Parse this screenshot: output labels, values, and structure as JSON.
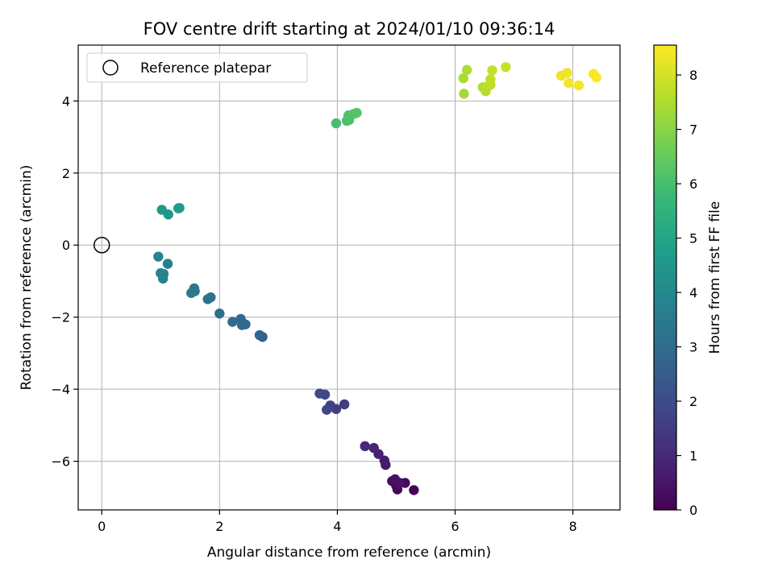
{
  "chart_data": {
    "type": "scatter",
    "title": "FOV centre drift starting at 2024/01/10 09:36:14",
    "xlabel": "Angular distance from reference (arcmin)",
    "ylabel": "Rotation from reference (arcmin)",
    "xlim": [
      -0.4,
      8.8
    ],
    "ylim": [
      -7.35,
      5.55
    ],
    "xticks": [
      0,
      2,
      4,
      6,
      8
    ],
    "xtick_labels": [
      "0",
      "2",
      "4",
      "6",
      "8"
    ],
    "yticks": [
      -6,
      -4,
      -2,
      0,
      2,
      4
    ],
    "ytick_labels": [
      "−6",
      "−4",
      "−2",
      "0",
      "2",
      "4"
    ],
    "grid": true,
    "legend": {
      "placement": "top-left",
      "entries": [
        {
          "label": "Reference platepar",
          "marker": "hollow-circle",
          "color": "#000000"
        }
      ]
    },
    "reference_point": {
      "x": 0,
      "y": 0,
      "label": "Reference platepar"
    },
    "colorbar": {
      "label": "Hours from first FF file",
      "colormap": "viridis",
      "range": [
        0,
        8.55
      ],
      "ticks": [
        0,
        1,
        2,
        3,
        4,
        5,
        6,
        7,
        8
      ],
      "tick_labels": [
        "0",
        "1",
        "2",
        "3",
        "4",
        "5",
        "6",
        "7",
        "8"
      ]
    },
    "points": [
      {
        "x": 5.3,
        "y": -6.8,
        "hours": 0.02
      },
      {
        "x": 5.02,
        "y": -6.78,
        "hours": 0.08
      },
      {
        "x": 5.15,
        "y": -6.6,
        "hours": 0.15
      },
      {
        "x": 5.0,
        "y": -6.68,
        "hours": 0.22
      },
      {
        "x": 4.93,
        "y": -6.55,
        "hours": 0.3
      },
      {
        "x": 4.98,
        "y": -6.5,
        "hours": 0.38
      },
      {
        "x": 5.06,
        "y": -6.6,
        "hours": 0.45
      },
      {
        "x": 4.82,
        "y": -6.1,
        "hours": 0.55
      },
      {
        "x": 4.8,
        "y": -5.98,
        "hours": 0.65
      },
      {
        "x": 4.7,
        "y": -5.8,
        "hours": 0.78
      },
      {
        "x": 4.62,
        "y": -5.63,
        "hours": 0.9
      },
      {
        "x": 4.47,
        "y": -5.58,
        "hours": 1.02
      },
      {
        "x": 4.12,
        "y": -4.42,
        "hours": 1.55
      },
      {
        "x": 3.98,
        "y": -4.55,
        "hours": 1.62
      },
      {
        "x": 3.88,
        "y": -4.45,
        "hours": 1.7
      },
      {
        "x": 3.82,
        "y": -4.57,
        "hours": 1.78
      },
      {
        "x": 3.79,
        "y": -4.15,
        "hours": 1.85
      },
      {
        "x": 3.7,
        "y": -4.12,
        "hours": 1.92
      },
      {
        "x": 2.73,
        "y": -2.55,
        "hours": 2.65
      },
      {
        "x": 2.68,
        "y": -2.5,
        "hours": 2.72
      },
      {
        "x": 2.44,
        "y": -2.2,
        "hours": 2.8
      },
      {
        "x": 2.38,
        "y": -2.22,
        "hours": 2.85
      },
      {
        "x": 2.36,
        "y": -2.05,
        "hours": 2.9
      },
      {
        "x": 2.22,
        "y": -2.13,
        "hours": 2.95
      },
      {
        "x": 2.0,
        "y": -1.9,
        "hours": 3.05
      },
      {
        "x": 1.85,
        "y": -1.45,
        "hours": 3.2
      },
      {
        "x": 1.8,
        "y": -1.5,
        "hours": 3.25
      },
      {
        "x": 1.57,
        "y": -1.2,
        "hours": 3.4
      },
      {
        "x": 1.58,
        "y": -1.28,
        "hours": 3.45
      },
      {
        "x": 1.52,
        "y": -1.33,
        "hours": 3.5
      },
      {
        "x": 1.12,
        "y": -0.52,
        "hours": 3.72
      },
      {
        "x": 1.04,
        "y": -0.93,
        "hours": 3.78
      },
      {
        "x": 1.05,
        "y": -0.8,
        "hours": 3.82
      },
      {
        "x": 1.0,
        "y": -0.78,
        "hours": 3.86
      },
      {
        "x": 0.96,
        "y": -0.32,
        "hours": 3.92
      },
      {
        "x": 1.13,
        "y": 0.85,
        "hours": 4.5
      },
      {
        "x": 1.02,
        "y": 0.98,
        "hours": 4.55
      },
      {
        "x": 1.32,
        "y": 1.03,
        "hours": 4.62
      },
      {
        "x": 1.3,
        "y": 1.02,
        "hours": 4.66
      },
      {
        "x": 3.98,
        "y": 3.38,
        "hours": 6.0
      },
      {
        "x": 4.16,
        "y": 3.45,
        "hours": 6.05
      },
      {
        "x": 4.2,
        "y": 3.47,
        "hours": 6.1
      },
      {
        "x": 4.19,
        "y": 3.6,
        "hours": 6.15
      },
      {
        "x": 4.28,
        "y": 3.64,
        "hours": 6.2
      },
      {
        "x": 4.33,
        "y": 3.67,
        "hours": 6.25
      },
      {
        "x": 6.15,
        "y": 4.2,
        "hours": 7.35
      },
      {
        "x": 6.14,
        "y": 4.63,
        "hours": 7.42
      },
      {
        "x": 6.2,
        "y": 4.86,
        "hours": 7.5
      },
      {
        "x": 6.47,
        "y": 4.38,
        "hours": 7.55
      },
      {
        "x": 6.52,
        "y": 4.27,
        "hours": 7.6
      },
      {
        "x": 6.55,
        "y": 4.4,
        "hours": 7.65
      },
      {
        "x": 6.6,
        "y": 4.45,
        "hours": 7.7
      },
      {
        "x": 6.6,
        "y": 4.6,
        "hours": 7.75
      },
      {
        "x": 6.63,
        "y": 4.85,
        "hours": 7.8
      },
      {
        "x": 6.86,
        "y": 4.94,
        "hours": 7.85
      },
      {
        "x": 7.8,
        "y": 4.7,
        "hours": 8.3
      },
      {
        "x": 7.9,
        "y": 4.78,
        "hours": 8.35
      },
      {
        "x": 7.93,
        "y": 4.5,
        "hours": 8.4
      },
      {
        "x": 8.1,
        "y": 4.43,
        "hours": 8.45
      },
      {
        "x": 8.35,
        "y": 4.75,
        "hours": 8.5
      },
      {
        "x": 8.4,
        "y": 4.65,
        "hours": 8.55
      }
    ]
  }
}
